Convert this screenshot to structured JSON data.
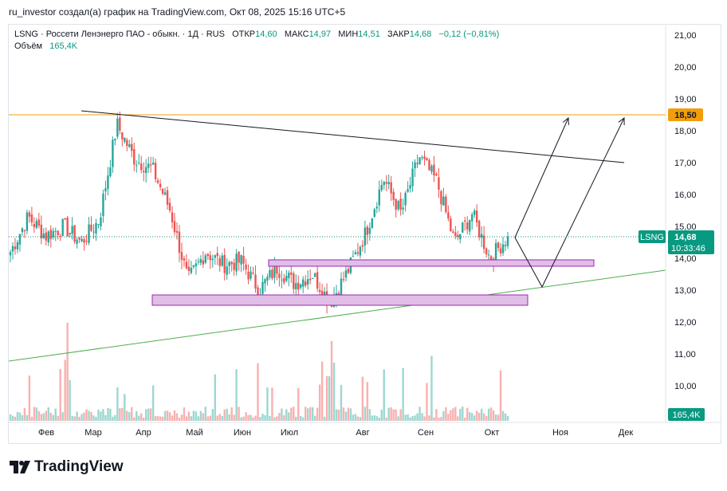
{
  "header": {
    "text": "ru_investor создал(а) график на TradingView.com, Окт 08, 2025 15:16 UTC+5"
  },
  "legend": {
    "symbol": "LSNG · Россети Ленэнерго ПАО - обыкн. · 1Д · RUS",
    "open_label": "ОТКР",
    "open_value": "14,60",
    "high_label": "МАКС",
    "high_value": "14,97",
    "low_label": "МИН",
    "low_value": "14,51",
    "close_label": "ЗАКР",
    "close_value": "14,68",
    "change": "−0,12 (−0,81%)",
    "volume_label": "Объём",
    "volume_value": "165,4K"
  },
  "price_scale": {
    "ticks": [
      "21,00",
      "20,00",
      "19,00",
      "18,00",
      "17,00",
      "16,00",
      "15,00",
      "14,00",
      "13,00",
      "12,00",
      "11,00",
      "10,00"
    ],
    "level_label": "18,50",
    "ticker_label": "LSNG",
    "last_price_label": "14,68",
    "countdown_label": "10:33:46",
    "volume_label": "165,4K"
  },
  "time_scale": {
    "ticks": [
      "Фев",
      "Мар",
      "Апр",
      "Май",
      "Июн",
      "Июл",
      "Авг",
      "Сен",
      "Окт",
      "Ноя",
      "Дек"
    ]
  },
  "colors": {
    "up": "#26a69a",
    "down": "#ef5350",
    "level": "#f29d0c",
    "box_fill": "#e1bee7",
    "box_stroke": "#9c27b0",
    "support": "#4caf50",
    "resistance": "#131722",
    "last_price": "#089981"
  },
  "brand": {
    "name": "TradingView",
    "icon": "tradingview-logo-icon"
  },
  "chart_data": {
    "type": "candlestick",
    "symbol": "LSNG",
    "timeframe": "1Д",
    "y_range": [
      9.5,
      21.4
    ],
    "last_price": 14.68,
    "ohlc_last": {
      "open": 14.6,
      "high": 14.97,
      "low": 14.51,
      "close": 14.68
    },
    "horizontal_level": 18.5,
    "close_anchors": [
      {
        "date": "Янв",
        "price": 14.2
      },
      {
        "date": "Янв",
        "price": 15.3
      },
      {
        "date": "Янв",
        "price": 14.7
      },
      {
        "date": "Фев",
        "price": 15.0
      },
      {
        "date": "Фев",
        "price": 14.5
      },
      {
        "date": "Фев",
        "price": 15.2
      },
      {
        "date": "Мар",
        "price": 18.2
      },
      {
        "date": "Мар",
        "price": 17.1
      },
      {
        "date": "Мар",
        "price": 16.8
      },
      {
        "date": "Апр",
        "price": 15.5
      },
      {
        "date": "Апр",
        "price": 13.3
      },
      {
        "date": "Апр",
        "price": 14.2
      },
      {
        "date": "Май",
        "price": 13.8
      },
      {
        "date": "Май",
        "price": 13.9
      },
      {
        "date": "Июн",
        "price": 13.0
      },
      {
        "date": "Июн",
        "price": 13.7
      },
      {
        "date": "Июл",
        "price": 13.2
      },
      {
        "date": "Июл",
        "price": 13.5
      },
      {
        "date": "Июл",
        "price": 12.6
      },
      {
        "date": "Авг",
        "price": 13.6
      },
      {
        "date": "Авг",
        "price": 14.8
      },
      {
        "date": "Авг",
        "price": 16.5
      },
      {
        "date": "Авг",
        "price": 15.4
      },
      {
        "date": "Сен",
        "price": 17.2
      },
      {
        "date": "Сен",
        "price": 16.4
      },
      {
        "date": "Сен",
        "price": 14.5
      },
      {
        "date": "Окт",
        "price": 15.4
      },
      {
        "date": "Окт",
        "price": 14.0
      },
      {
        "date": "Окт",
        "price": 14.68
      }
    ],
    "drawings": {
      "resistance_line": {
        "from": {
          "date": "Мар",
          "price": 18.6
        },
        "to": {
          "date": "Дек",
          "price": 17.0
        }
      },
      "support_line": {
        "from": {
          "date": "Янв",
          "price": 10.7
        },
        "to": {
          "date": "Дек",
          "price": 13.6
        }
      },
      "zone_upper": {
        "price_top": 13.9,
        "price_bottom": 13.75,
        "from": "Июл",
        "to": "Ноя"
      },
      "zone_lower": {
        "price_top": 12.8,
        "price_bottom": 12.5,
        "from": "Апр",
        "to": "Окт"
      },
      "projection_a": [
        {
          "date": "Окт",
          "price": 14.7
        },
        {
          "date": "Ноя",
          "price": 18.4
        }
      ],
      "projection_b": [
        {
          "date": "Окт",
          "price": 14.7
        },
        {
          "date": "Ноя",
          "price": 13.1
        },
        {
          "date": "Дек",
          "price": 18.4
        }
      ]
    }
  }
}
